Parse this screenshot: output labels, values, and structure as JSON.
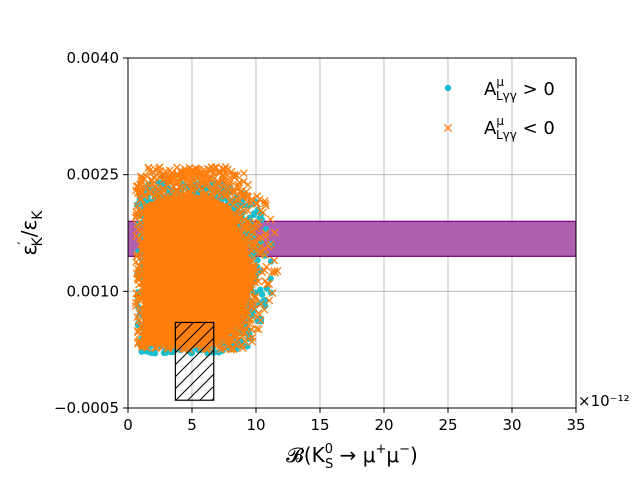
{
  "chart_data": {
    "type": "scatter",
    "title": "",
    "xlabel_base": "𝓑(K",
    "xlabel_sup": "0",
    "xlabel_sub": "S",
    "xlabel_tail": " → μ",
    "xlabel_plus": "+",
    "xlabel_mu2": "μ",
    "xlabel_minus": "−",
    "xlabel_close": ")",
    "ylabel_main": "ε",
    "ylabel_prime": "′",
    "ylabel_sub1": "K",
    "ylabel_div": "/ε",
    "ylabel_sub2": "K",
    "xlim": [
      0,
      35
    ],
    "ylim": [
      -0.0005,
      0.004
    ],
    "x_scale_factor_label": "×10⁻¹²",
    "x_ticks": [
      0,
      5,
      10,
      15,
      20,
      25,
      30,
      35
    ],
    "x_tick_labels": [
      "0",
      "5",
      "10",
      "15",
      "20",
      "25",
      "30",
      "35"
    ],
    "y_ticks": [
      -0.0005,
      0.001,
      0.0025,
      0.004
    ],
    "y_tick_labels": [
      "−0.0005",
      "0.0010",
      "0.0025",
      "0.0040"
    ],
    "grid": true,
    "legend_position": "top-right",
    "series": [
      {
        "name_base": "A",
        "name_sup": "μ",
        "name_sub": "Lγγ",
        "name_rel": " > 0",
        "marker": "circle",
        "color": "#17becf",
        "region": {
          "x_min": 0.7,
          "x_max": 13.5,
          "y_min": 0.0002,
          "y_max": 0.0024
        }
      },
      {
        "name_base": "A",
        "name_sup": "μ",
        "name_sub": "Lγγ",
        "name_rel": " < 0",
        "marker": "x",
        "color": "#ff7f0e",
        "region": {
          "x_min": 0.6,
          "x_max": 13.8,
          "y_min": 0.00025,
          "y_max": 0.0026
        }
      }
    ],
    "band": {
      "y_min": 0.00145,
      "y_max": 0.0019,
      "fill": "#b060b0",
      "edge": "#800080"
    },
    "hatched_box": {
      "x_min": 3.7,
      "x_max": 6.7,
      "y_min": -0.0004,
      "y_max": 0.0006
    }
  }
}
